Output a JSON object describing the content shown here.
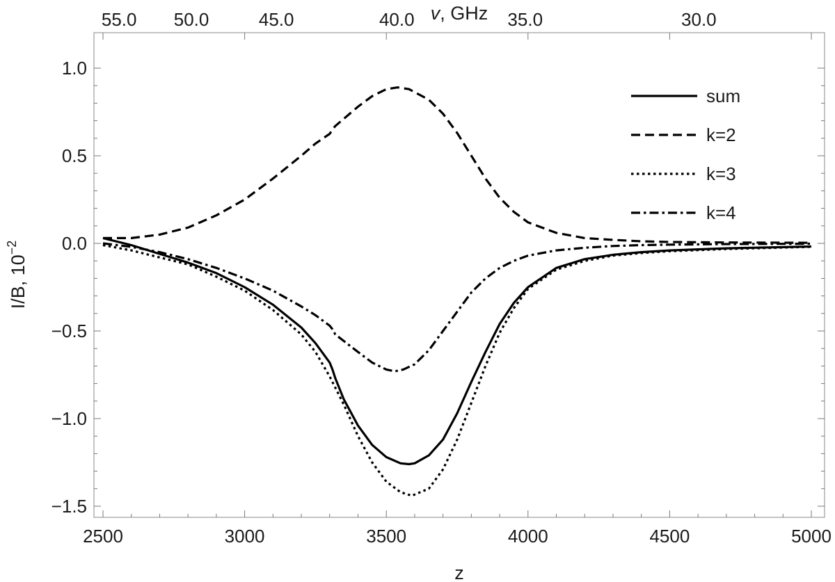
{
  "chart_data": {
    "type": "line",
    "title": "",
    "xlabel": "z",
    "ylabel": "I/B, 10",
    "ylabel_exponent": "−2",
    "top_axis_label_var": "v",
    "top_axis_label_unit": ", GHz",
    "xlim": [
      2500,
      5000
    ],
    "ylim": [
      -1.55,
      1.0
    ],
    "x_ticks": [
      2500,
      3000,
      3500,
      4000,
      4500,
      5000
    ],
    "x_tick_labels": [
      "2500",
      "3000",
      "3500",
      "4000",
      "4500",
      "5000"
    ],
    "y_ticks": [
      1.0,
      0.5,
      0.0,
      -0.5,
      -1.0,
      -1.5
    ],
    "y_tick_labels": [
      "1.0",
      "0.5",
      "0.0",
      "−0.5",
      "−1.0",
      "−1.5"
    ],
    "top_ticks": [
      {
        "label": "55.0",
        "z": 2557
      },
      {
        "label": "50.0",
        "z": 2812
      },
      {
        "label": "45.0",
        "z": 3112
      },
      {
        "label": "40.0",
        "z": 3537
      },
      {
        "label": "35.0",
        "z": 3990
      },
      {
        "label": "30.0",
        "z": 4603
      }
    ],
    "legend_position": "top-right",
    "grid": false,
    "series": [
      {
        "name": "sum",
        "dash": "solid",
        "x": [
          2500,
          2600,
          2700,
          2800,
          2900,
          3000,
          3100,
          3200,
          3250,
          3300,
          3310,
          3320,
          3350,
          3400,
          3450,
          3500,
          3550,
          3580,
          3600,
          3650,
          3700,
          3750,
          3800,
          3850,
          3900,
          3950,
          4000,
          4100,
          4200,
          4300,
          4400,
          4500,
          4700,
          5000
        ],
        "y": [
          0.03,
          -0.01,
          -0.06,
          -0.11,
          -0.17,
          -0.25,
          -0.35,
          -0.48,
          -0.57,
          -0.68,
          -0.72,
          -0.77,
          -0.89,
          -1.04,
          -1.15,
          -1.22,
          -1.255,
          -1.26,
          -1.255,
          -1.21,
          -1.12,
          -0.97,
          -0.79,
          -0.62,
          -0.46,
          -0.34,
          -0.25,
          -0.14,
          -0.09,
          -0.065,
          -0.05,
          -0.04,
          -0.028,
          -0.018
        ]
      },
      {
        "name": "k=2",
        "dash": "dashed",
        "x": [
          2500,
          2600,
          2700,
          2800,
          2900,
          3000,
          3100,
          3200,
          3250,
          3300,
          3310,
          3320,
          3400,
          3450,
          3500,
          3540,
          3580,
          3650,
          3700,
          3750,
          3800,
          3850,
          3900,
          3950,
          4000,
          4100,
          4200,
          4300,
          4400,
          4500,
          4700,
          5000
        ],
        "y": [
          0.03,
          0.03,
          0.05,
          0.09,
          0.16,
          0.25,
          0.37,
          0.5,
          0.57,
          0.625,
          0.65,
          0.67,
          0.78,
          0.84,
          0.88,
          0.89,
          0.88,
          0.82,
          0.74,
          0.63,
          0.5,
          0.37,
          0.26,
          0.18,
          0.12,
          0.06,
          0.03,
          0.02,
          0.012,
          0.008,
          0.005,
          0.003
        ]
      },
      {
        "name": "k=3",
        "dash": "dotted",
        "x": [
          2500,
          2600,
          2700,
          2800,
          2900,
          3000,
          3100,
          3200,
          3250,
          3300,
          3350,
          3400,
          3450,
          3500,
          3550,
          3590,
          3650,
          3700,
          3750,
          3800,
          3850,
          3900,
          3950,
          4000,
          4100,
          4200,
          4300,
          4400,
          4500,
          4700,
          5000
        ],
        "y": [
          -0.01,
          -0.04,
          -0.08,
          -0.12,
          -0.19,
          -0.27,
          -0.38,
          -0.52,
          -0.62,
          -0.76,
          -0.92,
          -1.1,
          -1.25,
          -1.36,
          -1.42,
          -1.44,
          -1.4,
          -1.29,
          -1.12,
          -0.91,
          -0.7,
          -0.51,
          -0.37,
          -0.26,
          -0.15,
          -0.1,
          -0.07,
          -0.055,
          -0.045,
          -0.032,
          -0.02
        ]
      },
      {
        "name": "k=4",
        "dash": "dashdot",
        "x": [
          2500,
          2600,
          2700,
          2800,
          2900,
          3000,
          3100,
          3200,
          3250,
          3300,
          3310,
          3320,
          3400,
          3450,
          3500,
          3530,
          3560,
          3600,
          3650,
          3700,
          3750,
          3800,
          3850,
          3900,
          3950,
          4000,
          4100,
          4200,
          4300,
          4400,
          4500,
          4700,
          5000
        ],
        "y": [
          0.0,
          -0.02,
          -0.05,
          -0.09,
          -0.14,
          -0.2,
          -0.27,
          -0.36,
          -0.41,
          -0.47,
          -0.49,
          -0.52,
          -0.62,
          -0.68,
          -0.72,
          -0.73,
          -0.72,
          -0.69,
          -0.61,
          -0.5,
          -0.39,
          -0.28,
          -0.2,
          -0.14,
          -0.1,
          -0.07,
          -0.04,
          -0.025,
          -0.015,
          -0.01,
          -0.007,
          -0.004,
          -0.002
        ]
      }
    ]
  }
}
